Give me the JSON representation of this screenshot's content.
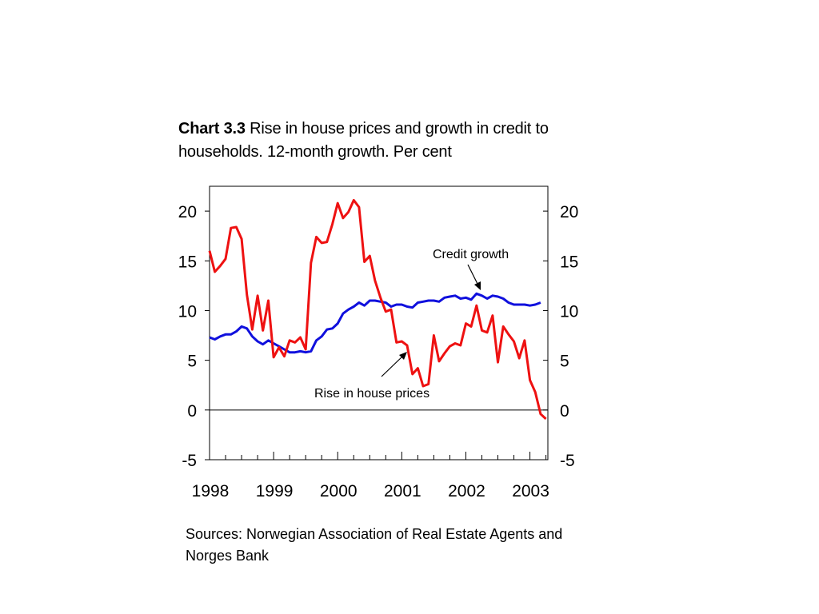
{
  "title": {
    "label": "Chart 3.3",
    "text": "Rise in house prices and growth in credit to households. 12-month growth. Per cent"
  },
  "source": "Sources: Norwegian Association of Real Estate Agents and Norges Bank",
  "chart_data": {
    "type": "line",
    "ylim": [
      -5,
      22.5
    ],
    "yticks": [
      -5,
      0,
      5,
      10,
      15,
      20
    ],
    "xlim": [
      1998.0,
      2003.28
    ],
    "xtick_labels": [
      "1998",
      "1999",
      "2000",
      "2001",
      "2002",
      "2003"
    ],
    "x_tick_positions": [
      1998,
      1999,
      2000,
      2001,
      2002,
      2003
    ],
    "grid": false,
    "zero_line": true,
    "series": [
      {
        "name": "Credit growth",
        "color": "#1010dd",
        "x": [
          1998.0,
          1998.083,
          1998.167,
          1998.25,
          1998.333,
          1998.417,
          1998.5,
          1998.583,
          1998.667,
          1998.75,
          1998.833,
          1998.917,
          1999.0,
          1999.083,
          1999.167,
          1999.25,
          1999.333,
          1999.417,
          1999.5,
          1999.583,
          1999.667,
          1999.75,
          1999.833,
          1999.917,
          2000.0,
          2000.083,
          2000.167,
          2000.25,
          2000.333,
          2000.417,
          2000.5,
          2000.583,
          2000.667,
          2000.75,
          2000.833,
          2000.917,
          2001.0,
          2001.083,
          2001.167,
          2001.25,
          2001.333,
          2001.417,
          2001.5,
          2001.583,
          2001.667,
          2001.75,
          2001.833,
          2001.917,
          2002.0,
          2002.083,
          2002.167,
          2002.25,
          2002.333,
          2002.417,
          2002.5,
          2002.583,
          2002.667,
          2002.75,
          2002.833,
          2002.917,
          2003.0,
          2003.083,
          2003.167
        ],
        "values": [
          7.3,
          7.1,
          7.4,
          7.6,
          7.6,
          7.9,
          8.4,
          8.2,
          7.4,
          6.9,
          6.6,
          7.0,
          6.7,
          6.4,
          6.1,
          5.8,
          5.8,
          5.9,
          5.8,
          5.9,
          7.0,
          7.4,
          8.1,
          8.2,
          8.7,
          9.7,
          10.1,
          10.4,
          10.8,
          10.5,
          11.0,
          11.0,
          10.9,
          10.8,
          10.4,
          10.6,
          10.6,
          10.4,
          10.3,
          10.8,
          10.9,
          11.0,
          11.0,
          10.9,
          11.3,
          11.4,
          11.5,
          11.2,
          11.3,
          11.1,
          11.7,
          11.5,
          11.2,
          11.5,
          11.4,
          11.2,
          10.8,
          10.6,
          10.6,
          10.6,
          10.5,
          10.6,
          10.8
        ]
      },
      {
        "name": "Rise in house prices",
        "color": "#ee1111",
        "x": [
          1998.0,
          1998.083,
          1998.167,
          1998.25,
          1998.333,
          1998.417,
          1998.5,
          1998.583,
          1998.667,
          1998.75,
          1998.833,
          1998.917,
          1999.0,
          1999.083,
          1999.167,
          1999.25,
          1999.333,
          1999.417,
          1999.5,
          1999.583,
          1999.667,
          1999.75,
          1999.833,
          1999.917,
          2000.0,
          2000.083,
          2000.167,
          2000.25,
          2000.333,
          2000.417,
          2000.5,
          2000.583,
          2000.667,
          2000.75,
          2000.833,
          2000.917,
          2001.0,
          2001.083,
          2001.167,
          2001.25,
          2001.333,
          2001.417,
          2001.5,
          2001.583,
          2001.667,
          2001.75,
          2001.833,
          2001.917,
          2002.0,
          2002.083,
          2002.167,
          2002.25,
          2002.333,
          2002.417,
          2002.5,
          2002.583,
          2002.667,
          2002.75,
          2002.833,
          2002.917,
          2003.0,
          2003.083,
          2003.167,
          2003.25
        ],
        "values": [
          16.0,
          13.9,
          14.5,
          15.2,
          18.3,
          18.4,
          17.2,
          11.6,
          8.1,
          11.5,
          8.0,
          11.0,
          5.3,
          6.3,
          5.4,
          7.0,
          6.8,
          7.3,
          6.1,
          14.8,
          17.4,
          16.8,
          16.9,
          18.7,
          20.8,
          19.3,
          19.9,
          21.1,
          20.4,
          14.9,
          15.5,
          13.0,
          11.3,
          9.9,
          10.1,
          6.8,
          6.9,
          6.5,
          3.6,
          4.2,
          2.4,
          2.6,
          7.5,
          4.9,
          5.7,
          6.4,
          6.7,
          6.5,
          8.7,
          8.4,
          10.5,
          8.0,
          7.8,
          9.5,
          4.8,
          8.4,
          7.6,
          6.9,
          5.2,
          7.0,
          3.0,
          1.8,
          -0.4,
          -0.9
        ]
      }
    ],
    "annotations": [
      {
        "text": "Credit growth",
        "series": "Credit growth"
      },
      {
        "text": "Rise in house prices",
        "series": "Rise in house prices"
      }
    ]
  }
}
